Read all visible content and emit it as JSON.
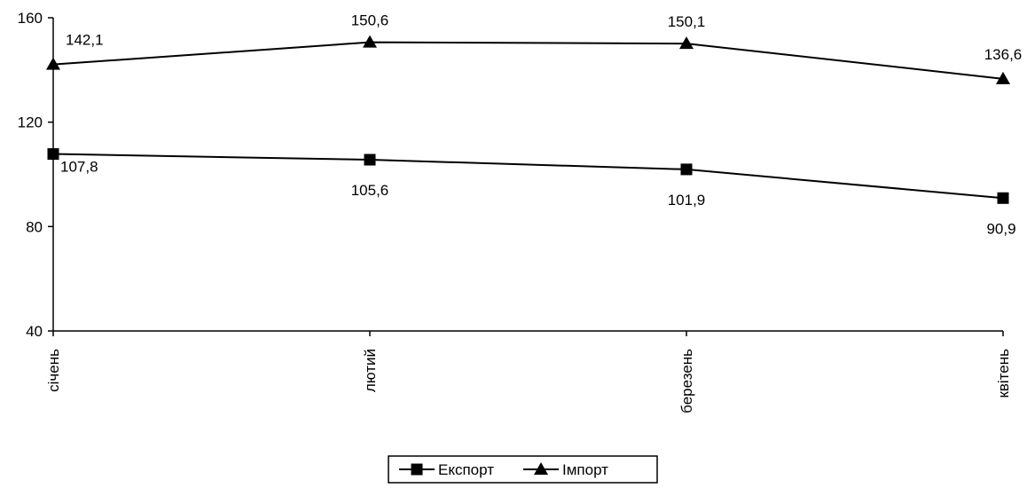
{
  "chart_data": {
    "type": "line",
    "categories": [
      "січень",
      "лютий",
      "березень",
      "квітень"
    ],
    "ylim": [
      40,
      160
    ],
    "yticks": [
      40,
      80,
      120,
      160
    ],
    "grid": false,
    "legend_position": "bottom",
    "series": [
      {
        "name": "Експорт",
        "marker": "square",
        "values": [
          107.8,
          105.6,
          101.9,
          90.9
        ],
        "labels": [
          "107,8",
          "105,6",
          "101,9",
          "90,9"
        ],
        "color": "#000000"
      },
      {
        "name": "Імпорт",
        "marker": "triangle",
        "values": [
          142.1,
          150.6,
          150.1,
          136.6
        ],
        "labels": [
          "142,1",
          "150,6",
          "150,1",
          "136,6"
        ],
        "color": "#000000"
      }
    ]
  }
}
